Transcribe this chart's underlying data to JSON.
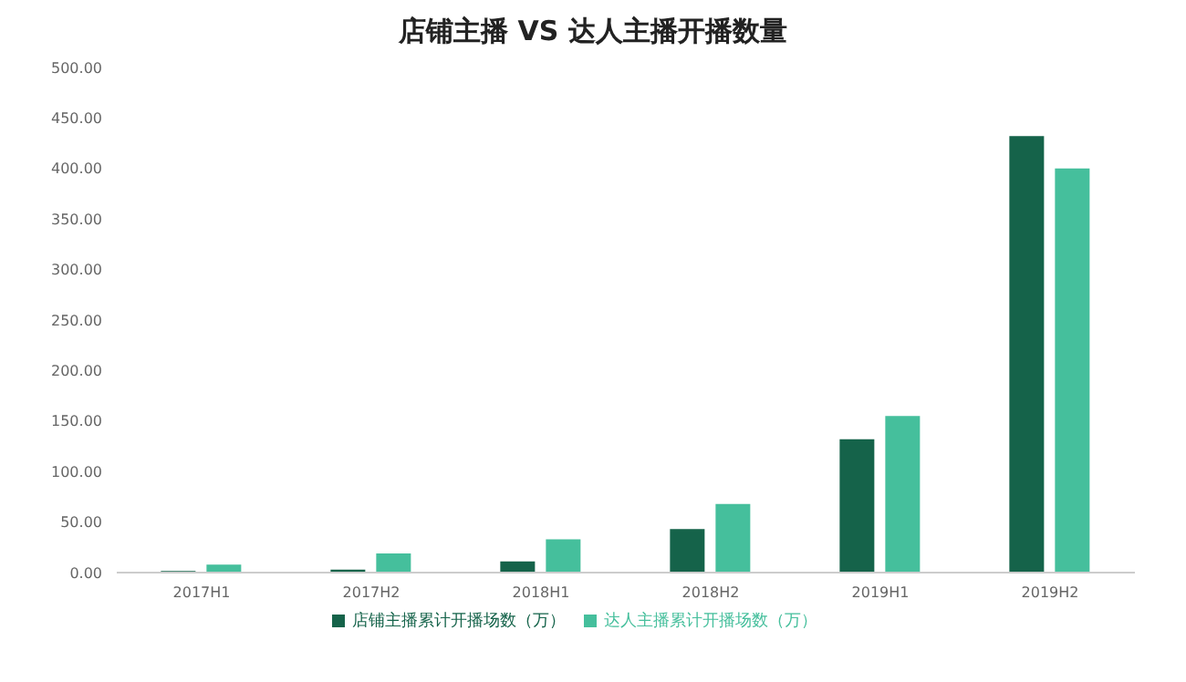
{
  "chart_data": {
    "type": "bar",
    "title": "店铺主播 VS 达人主播开播数量",
    "categories": [
      "2017H1",
      "2017H2",
      "2018H1",
      "2018H2",
      "2019H1",
      "2019H2"
    ],
    "series": [
      {
        "name": "店铺主播累计开播场数（万）",
        "color": "#15634a",
        "values": [
          1.5,
          3,
          11,
          43,
          132,
          432
        ]
      },
      {
        "name": "达人主播累计开播场数（万）",
        "color": "#45bf9c",
        "values": [
          8,
          19,
          33,
          68,
          155,
          400
        ]
      }
    ],
    "ylim": [
      0,
      500
    ],
    "yticks": [
      {
        "value": 0,
        "label": "0.00"
      },
      {
        "value": 50,
        "label": "50.00"
      },
      {
        "value": 100,
        "label": "100.00"
      },
      {
        "value": 150,
        "label": "150.00"
      },
      {
        "value": 200,
        "label": "200.00"
      },
      {
        "value": 250,
        "label": "250.00"
      },
      {
        "value": 300,
        "label": "300.00"
      },
      {
        "value": 350,
        "label": "350.00"
      },
      {
        "value": 400,
        "label": "400.00"
      },
      {
        "value": 450,
        "label": "450.00"
      },
      {
        "value": 500,
        "label": "500.00"
      }
    ],
    "grid": false,
    "legend": "bottom"
  }
}
